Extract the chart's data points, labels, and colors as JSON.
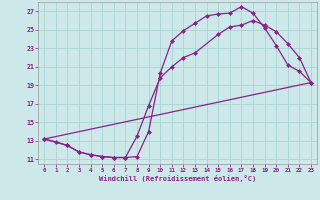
{
  "xlabel": "Windchill (Refroidissement éolien,°C)",
  "background_color": "#cce8e8",
  "grid_color": "#aad4d4",
  "line_color": "#882288",
  "xlim": [
    -0.5,
    23.5
  ],
  "ylim": [
    10.5,
    28.0
  ],
  "xticks": [
    0,
    1,
    2,
    3,
    4,
    5,
    6,
    7,
    8,
    9,
    10,
    11,
    12,
    13,
    14,
    15,
    16,
    17,
    18,
    19,
    20,
    21,
    22,
    23
  ],
  "yticks": [
    11,
    13,
    15,
    17,
    19,
    21,
    23,
    25,
    27
  ],
  "curve1_x": [
    0,
    1,
    2,
    3,
    4,
    5,
    6,
    7,
    8,
    9,
    10,
    11,
    12,
    13,
    14,
    15,
    16,
    17,
    18,
    19,
    20,
    21,
    22,
    23
  ],
  "curve1_y": [
    13.2,
    12.9,
    12.5,
    11.8,
    11.5,
    11.3,
    11.2,
    11.2,
    11.3,
    14.0,
    20.3,
    23.8,
    24.9,
    25.7,
    26.5,
    26.7,
    26.8,
    27.5,
    26.8,
    25.2,
    23.3,
    21.2,
    20.5,
    19.3
  ],
  "curve2_x": [
    0,
    2,
    3,
    4,
    5,
    6,
    7,
    8,
    9,
    10,
    11,
    12,
    13,
    15,
    16,
    17,
    18,
    19,
    20,
    21,
    22,
    23
  ],
  "curve2_y": [
    13.2,
    12.5,
    11.8,
    11.5,
    11.3,
    11.2,
    11.2,
    13.5,
    16.8,
    19.8,
    21.0,
    22.0,
    22.5,
    24.5,
    25.3,
    25.5,
    26.0,
    25.5,
    24.8,
    23.5,
    22.0,
    19.3
  ],
  "curve3_x": [
    0,
    23
  ],
  "curve3_y": [
    13.2,
    19.3
  ],
  "marker": "D",
  "markersize": 2.5,
  "linewidth": 0.9
}
